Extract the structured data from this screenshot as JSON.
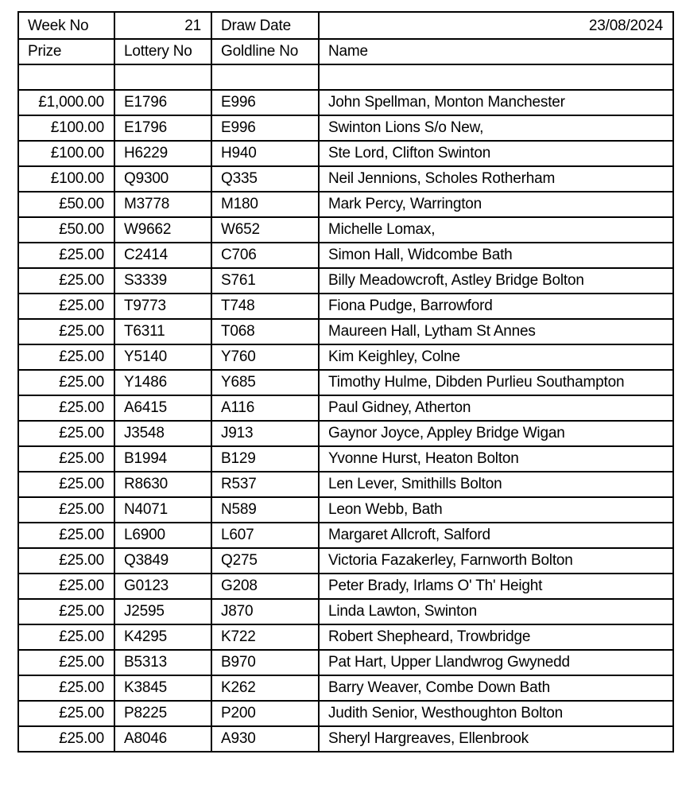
{
  "header": {
    "week_label": "Week No",
    "week_value": "21",
    "draw_date_label": "Draw Date",
    "draw_date_value": "23/08/2024"
  },
  "columns": {
    "prize": "Prize",
    "lottery_no": "Lottery No",
    "goldline_no": "Goldline No",
    "name": "Name"
  },
  "rows": [
    {
      "prize": "£1,000.00",
      "lottery": "E1796",
      "goldline": "E996",
      "name": "John Spellman, Monton Manchester"
    },
    {
      "prize": "£100.00",
      "lottery": "E1796",
      "goldline": "E996",
      "name": "Swinton Lions S/o New,"
    },
    {
      "prize": "£100.00",
      "lottery": "H6229",
      "goldline": "H940",
      "name": "Ste Lord, Clifton Swinton"
    },
    {
      "prize": "£100.00",
      "lottery": "Q9300",
      "goldline": "Q335",
      "name": "Neil Jennions, Scholes Rotherham"
    },
    {
      "prize": "£50.00",
      "lottery": "M3778",
      "goldline": "M180",
      "name": "Mark Percy, Warrington"
    },
    {
      "prize": "£50.00",
      "lottery": "W9662",
      "goldline": "W652",
      "name": "Michelle Lomax,"
    },
    {
      "prize": "£25.00",
      "lottery": "C2414",
      "goldline": "C706",
      "name": "Simon Hall, Widcombe Bath"
    },
    {
      "prize": "£25.00",
      "lottery": "S3339",
      "goldline": "S761",
      "name": "Billy Meadowcroft, Astley Bridge Bolton"
    },
    {
      "prize": "£25.00",
      "lottery": "T9773",
      "goldline": "T748",
      "name": "Fiona Pudge, Barrowford"
    },
    {
      "prize": "£25.00",
      "lottery": "T6311",
      "goldline": "T068",
      "name": "Maureen Hall, Lytham St Annes"
    },
    {
      "prize": "£25.00",
      "lottery": "Y5140",
      "goldline": "Y760",
      "name": "Kim Keighley, Colne"
    },
    {
      "prize": "£25.00",
      "lottery": "Y1486",
      "goldline": "Y685",
      "name": "Timothy Hulme, Dibden Purlieu Southampton"
    },
    {
      "prize": "£25.00",
      "lottery": "A6415",
      "goldline": "A116",
      "name": "Paul Gidney, Atherton"
    },
    {
      "prize": "£25.00",
      "lottery": "J3548",
      "goldline": "J913",
      "name": "Gaynor Joyce, Appley Bridge Wigan"
    },
    {
      "prize": "£25.00",
      "lottery": "B1994",
      "goldline": "B129",
      "name": "Yvonne Hurst, Heaton Bolton"
    },
    {
      "prize": "£25.00",
      "lottery": "R8630",
      "goldline": "R537",
      "name": "Len Lever, Smithills Bolton"
    },
    {
      "prize": "£25.00",
      "lottery": "N4071",
      "goldline": "N589",
      "name": "Leon Webb, Bath"
    },
    {
      "prize": "£25.00",
      "lottery": "L6900",
      "goldline": "L607",
      "name": "Margaret Allcroft, Salford"
    },
    {
      "prize": "£25.00",
      "lottery": "Q3849",
      "goldline": "Q275",
      "name": "Victoria Fazakerley, Farnworth Bolton"
    },
    {
      "prize": "£25.00",
      "lottery": "G0123",
      "goldline": "G208",
      "name": "Peter Brady, Irlams O' Th' Height"
    },
    {
      "prize": "£25.00",
      "lottery": "J2595",
      "goldline": "J870",
      "name": "Linda Lawton, Swinton"
    },
    {
      "prize": "£25.00",
      "lottery": "K4295",
      "goldline": "K722",
      "name": "Robert Shepheard, Trowbridge"
    },
    {
      "prize": "£25.00",
      "lottery": "B5313",
      "goldline": "B970",
      "name": "Pat Hart, Upper Llandwrog Gwynedd"
    },
    {
      "prize": "£25.00",
      "lottery": "K3845",
      "goldline": "K262",
      "name": "Barry Weaver, Combe Down Bath"
    },
    {
      "prize": "£25.00",
      "lottery": "P8225",
      "goldline": "P200",
      "name": "Judith Senior, Westhoughton Bolton"
    },
    {
      "prize": "£25.00",
      "lottery": "A8046",
      "goldline": "A930",
      "name": "Sheryl Hargreaves, Ellenbrook"
    }
  ]
}
